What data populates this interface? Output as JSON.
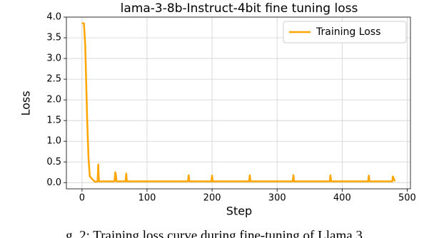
{
  "chart_data": {
    "type": "line",
    "title": "lama-3-8b-Instruct-4bit fine tuning loss",
    "x_label": "Step",
    "y_label": "Loss",
    "caption": "g. 2: Training loss curve during fine-tuning of Llama 3",
    "x": [
      0,
      3,
      5,
      8,
      10,
      12,
      16,
      20,
      24,
      25,
      26,
      50,
      51,
      52,
      53,
      67,
      68,
      69,
      163,
      164,
      165,
      199,
      200,
      201,
      257,
      258,
      259,
      324,
      325,
      326,
      381,
      382,
      383,
      440,
      441,
      442,
      477,
      478,
      481
    ],
    "series": [
      {
        "name": "Training Loss",
        "color": "#ffa500",
        "values": [
          3.85,
          3.85,
          3.3,
          1.5,
          0.6,
          0.15,
          0.08,
          0.02,
          0.03,
          0.44,
          0.03,
          0.03,
          0.25,
          0.2,
          0.03,
          0.03,
          0.22,
          0.03,
          0.03,
          0.18,
          0.03,
          0.03,
          0.17,
          0.03,
          0.03,
          0.18,
          0.03,
          0.03,
          0.18,
          0.03,
          0.03,
          0.18,
          0.03,
          0.03,
          0.17,
          0.03,
          0.03,
          0.15,
          0.03
        ]
      }
    ],
    "xlim": [
      -24,
      505
    ],
    "ylim": [
      -0.15,
      4.0
    ],
    "xticks": [
      0,
      100,
      200,
      300,
      400,
      500
    ],
    "yticks": [
      {
        "value": 0,
        "label": "0.0"
      },
      {
        "value": 0.5,
        "label": "0.5"
      },
      {
        "value": 1,
        "label": "1.0"
      },
      {
        "value": 1.5,
        "label": "1.5"
      },
      {
        "value": 2,
        "label": "2.0"
      },
      {
        "value": 2.5,
        "label": "2.5"
      },
      {
        "value": 3,
        "label": "3.0"
      },
      {
        "value": 3.5,
        "label": "3.5"
      },
      {
        "value": 4,
        "label": "4.0"
      }
    ],
    "grid": true,
    "legend": "upper right"
  }
}
